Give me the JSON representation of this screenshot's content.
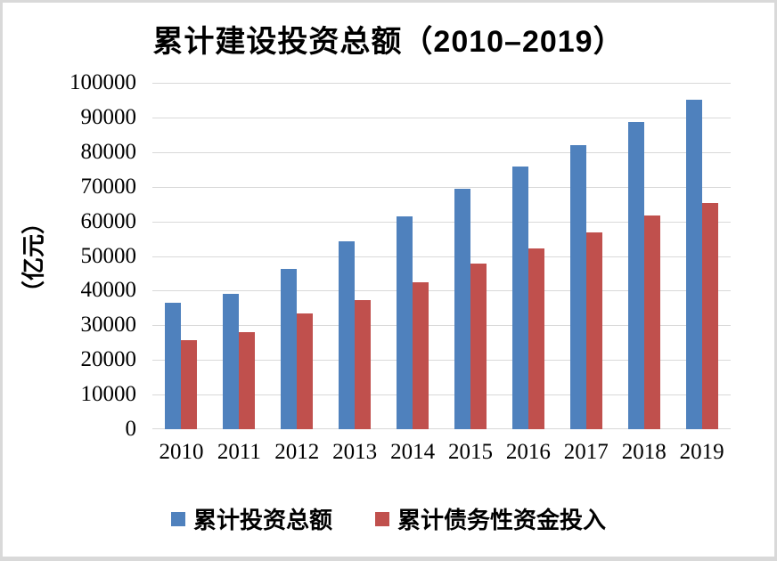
{
  "frame": {
    "background": "#ffffff",
    "border_color": "#d9d9d9"
  },
  "chart_data": {
    "type": "bar",
    "title": "累计建设投资总额（2010–2019）",
    "ylabel": "（亿元）",
    "xlabel": "",
    "categories": [
      "2010",
      "2011",
      "2012",
      "2013",
      "2014",
      "2015",
      "2016",
      "2017",
      "2018",
      "2019"
    ],
    "series": [
      {
        "name": "累计投资总额",
        "color": "#4F81BD",
        "values": [
          36400,
          39000,
          46400,
          54300,
          61500,
          69500,
          75900,
          82100,
          88700,
          95000
        ]
      },
      {
        "name": "累计债务性资金投入",
        "color": "#C0504D",
        "values": [
          25800,
          28000,
          33500,
          37400,
          42500,
          47800,
          52300,
          56700,
          61700,
          65300
        ]
      }
    ],
    "ylim": [
      0,
      100000
    ],
    "ytick_step": 10000,
    "grid": true,
    "gridline_color": "#d9d9d9",
    "legend_position": "bottom"
  }
}
